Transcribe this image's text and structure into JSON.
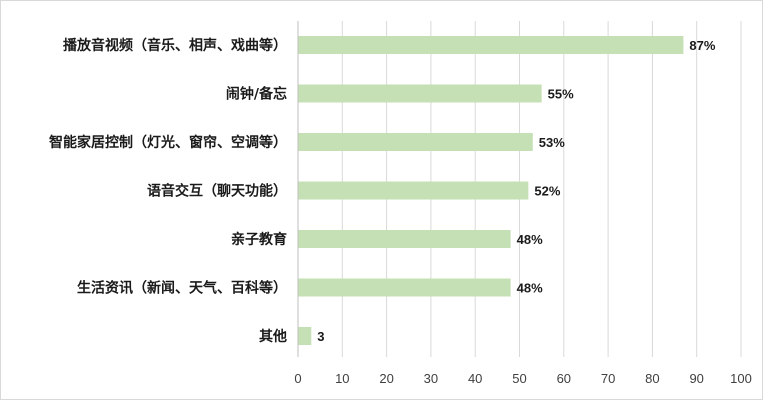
{
  "chart_data": {
    "type": "bar",
    "orientation": "horizontal",
    "categories": [
      "播放音视频（音乐、相声、戏曲等）",
      "闹钟/备忘",
      "智能家居控制（灯光、窗帘、空调等）",
      "语音交互（聊天功能）",
      "亲子教育",
      "生活资讯（新闻、天气、百科等）",
      "其他"
    ],
    "values": [
      87,
      55,
      53,
      52,
      48,
      48,
      3
    ],
    "value_labels": [
      "87%",
      "55%",
      "53%",
      "52%",
      "48%",
      "48%",
      "3"
    ],
    "xlim": [
      0,
      100
    ],
    "xticks": [
      "0",
      "10",
      "20",
      "30",
      "40",
      "50",
      "60",
      "70",
      "80",
      "90",
      "100"
    ],
    "grid": true,
    "legend": "none",
    "colors": {
      "bar": "#c5e0b4",
      "grid": "#d9d9d9",
      "axis": "#bfbfbf"
    }
  }
}
